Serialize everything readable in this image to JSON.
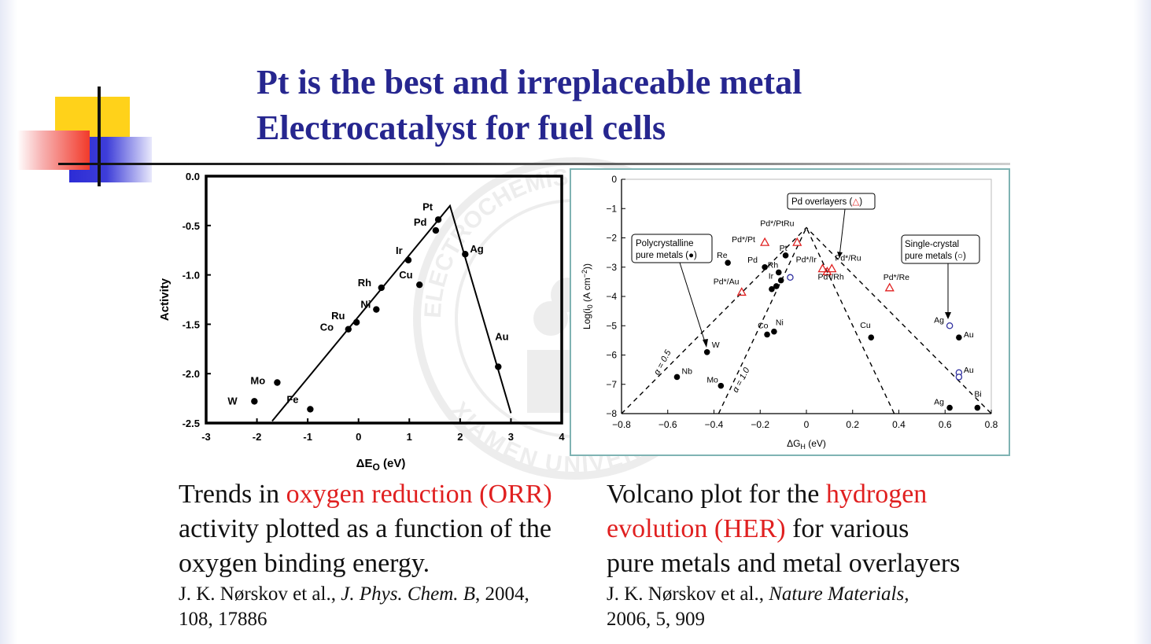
{
  "slide": {
    "title_line1": "Pt is the best and irreplaceable metal",
    "title_line2": "Electrocatalyst for fuel cells",
    "watermark_top": "ELECTROCHEMISTRY SUMMER SCHOOL",
    "watermark_bottom": "XIAMEN UNIVERSITY",
    "colors": {
      "title": "#26268f",
      "highlight": "#e02020",
      "overlayer_marker": "#e02020",
      "single_crystal_marker": "#3030a0"
    }
  },
  "caption_left": {
    "pre": "Trends in ",
    "highlight": "oxygen reduction (ORR)",
    "post1": "activity plotted as a function of the",
    "post2": "oxygen binding energy.",
    "ref_authors": "J. K. Nørskov  et al., ",
    "ref_journal": "J. Phys. Chem. B",
    "ref_rest1": ",  2004,",
    "ref_rest2": "108, 17886"
  },
  "caption_right": {
    "pre": "Volcano plot for the ",
    "highlight1": "hydrogen",
    "highlight2": "evolution (HER)",
    "post1": " for various",
    "post2": "pure metals and metal overlayers",
    "ref_authors": "J. K. Nørskov  et al., ",
    "ref_journal": "Nature Materials,",
    "ref_rest": "2006, 5, 909"
  },
  "chart_data": [
    {
      "type": "scatter",
      "xlabel": "ΔE",
      "xlabel_sub": "O",
      "xlabel_unit": " (eV)",
      "ylabel": "Activity",
      "xlim": [
        -3,
        4
      ],
      "ylim": [
        -2.5,
        0.0
      ],
      "x_ticks": [
        -3,
        -2,
        -1,
        0,
        1,
        2,
        3,
        4
      ],
      "y_ticks": [
        0.0,
        -0.5,
        -1.0,
        -1.5,
        -2.0,
        -2.5
      ],
      "y_tick_labels": [
        "0.0",
        "-0.5",
        "-1.0",
        "-1.5",
        "-2.0",
        "-2.5"
      ],
      "points": [
        {
          "label": "Pt",
          "x": 1.57,
          "y": -0.44
        },
        {
          "label": "Pd",
          "x": 1.52,
          "y": -0.55
        },
        {
          "label": "Ag",
          "x": 2.1,
          "y": -0.79
        },
        {
          "label": "Ir",
          "x": 0.98,
          "y": -0.85
        },
        {
          "label": "Cu",
          "x": 1.2,
          "y": -1.1
        },
        {
          "label": "Rh",
          "x": 0.45,
          "y": -1.13
        },
        {
          "label": "Ni",
          "x": 0.35,
          "y": -1.35
        },
        {
          "label": "Ru",
          "x": -0.04,
          "y": -1.48
        },
        {
          "label": "Co",
          "x": -0.2,
          "y": -1.55
        },
        {
          "label": "Au",
          "x": 2.75,
          "y": -1.93
        },
        {
          "label": "Mo",
          "x": -1.6,
          "y": -2.09
        },
        {
          "label": "W",
          "x": -2.05,
          "y": -2.28
        },
        {
          "label": "Fe",
          "x": -0.95,
          "y": -2.36
        }
      ],
      "lines": [
        {
          "x": [
            -1.7,
            1.8,
            3.0
          ],
          "y": [
            -2.48,
            -0.3,
            -2.4
          ]
        }
      ]
    },
    {
      "type": "scatter",
      "xlabel": "ΔG",
      "xlabel_sub": "H",
      "xlabel_unit": " (eV)",
      "ylabel": "Log(i",
      "ylabel_sub": "0",
      "ylabel_unit": " (A cm",
      "ylabel_sup": "−2",
      "ylabel_end": "))",
      "xlim": [
        -0.8,
        0.8
      ],
      "ylim": [
        -8,
        0
      ],
      "x_ticks": [
        -0.8,
        -0.6,
        -0.4,
        -0.2,
        0,
        0.2,
        0.4,
        0.6,
        0.8
      ],
      "x_tick_labels": [
        "−0.8",
        "−0.6",
        "−0.4",
        "−0.2",
        "0",
        "0.2",
        "0.4",
        "0.6",
        "0.8"
      ],
      "y_ticks": [
        0,
        -1,
        -2,
        -3,
        -4,
        -5,
        -6,
        -7,
        -8
      ],
      "y_tick_labels": [
        "0",
        "−1",
        "−2",
        "−3",
        "−4",
        "−5",
        "−6",
        "−7",
        "−8"
      ],
      "series": [
        {
          "name": "Polycrystalline pure metals (●)",
          "marker": "filled-circle",
          "points": [
            {
              "label": "Re",
              "x": -0.34,
              "y": -2.85
            },
            {
              "label": "Pd",
              "x": -0.18,
              "y": -3.0
            },
            {
              "label": "Rh",
              "x": -0.12,
              "y": -3.18
            },
            {
              "label": "Pt",
              "x": -0.09,
              "y": -2.6
            },
            {
              "label": "Ir",
              "x": -0.11,
              "y": -3.45
            },
            {
              "label": "",
              "x": -0.13,
              "y": -3.65
            },
            {
              "label": "",
              "x": -0.15,
              "y": -3.75
            },
            {
              "label": "Co",
              "x": -0.17,
              "y": -5.3
            },
            {
              "label": "Ni",
              "x": -0.14,
              "y": -5.2
            },
            {
              "label": "W",
              "x": -0.43,
              "y": -5.9
            },
            {
              "label": "Nb",
              "x": -0.56,
              "y": -6.75
            },
            {
              "label": "Mo",
              "x": -0.37,
              "y": -7.05
            },
            {
              "label": "Cu",
              "x": 0.28,
              "y": -5.4
            },
            {
              "label": "Au",
              "x": 0.66,
              "y": -5.4
            },
            {
              "label": "Ag",
              "x": 0.62,
              "y": -7.8
            },
            {
              "label": "Bi",
              "x": 0.74,
              "y": -7.8
            }
          ]
        },
        {
          "name": "Pd overlayers (△)",
          "marker": "open-triangle",
          "points": [
            {
              "label": "Pd*/Pt",
              "x": -0.18,
              "y": -2.15
            },
            {
              "label": "",
              "x": -0.04,
              "y": -2.15
            },
            {
              "label": "Pd*/Ir",
              "x": 0.07,
              "y": -3.05
            },
            {
              "label": "Pd*/Ru",
              "x": 0.11,
              "y": -3.05
            },
            {
              "label": "Pd*/Rh",
              "x": 0.09,
              "y": -3.15
            },
            {
              "label": "Pd*/Au",
              "x": -0.28,
              "y": -3.85
            },
            {
              "label": "Pd*/Re",
              "x": 0.36,
              "y": -3.7
            }
          ]
        },
        {
          "name": "Single-crystal pure metals (○)",
          "marker": "open-circle",
          "points": [
            {
              "label": "",
              "x": -0.07,
              "y": -3.35
            },
            {
              "label": "Ag",
              "x": 0.62,
              "y": -5.0
            },
            {
              "label": "Au",
              "x": 0.66,
              "y": -6.6
            },
            {
              "label": "",
              "x": 0.66,
              "y": -6.75
            }
          ]
        }
      ],
      "extra_labels": [
        "Pd*/PtRu"
      ],
      "legend_boxes": [
        {
          "text1": "Pd overlayers (",
          "symbol": "△",
          "text2": ")"
        },
        {
          "text1": "Polycrystalline",
          "text2": "pure metals (●)"
        },
        {
          "text1": "Single-crystal",
          "text2": "pure metals (○)"
        }
      ],
      "curves": [
        {
          "label": "α = 0.5",
          "x": [
            -0.8,
            0.0,
            0.8
          ],
          "y": [
            -8,
            -1.65,
            -8
          ]
        },
        {
          "label": "α = 1.0",
          "x": [
            -0.38,
            0.0,
            0.38
          ],
          "y": [
            -8,
            -1.65,
            -8
          ]
        }
      ]
    }
  ]
}
